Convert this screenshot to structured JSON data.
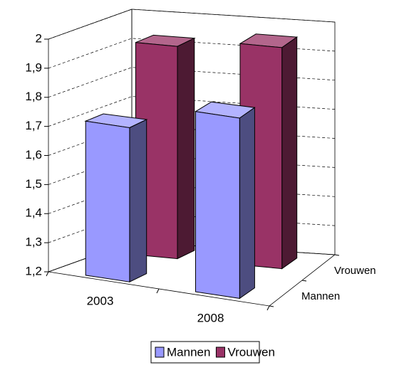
{
  "chart_data": {
    "type": "bar3d",
    "categories": [
      "2003",
      "2008"
    ],
    "series": [
      {
        "name": "Mannen",
        "color": "#9999ff",
        "values": [
          1.73,
          1.82
        ]
      },
      {
        "name": "Vrouwen",
        "color": "#993366",
        "values": [
          1.93,
          1.96
        ]
      }
    ],
    "ylim": [
      1.2,
      2
    ],
    "yticks": [
      {
        "value": 1.2,
        "label": "1,2"
      },
      {
        "value": 1.3,
        "label": "1,3"
      },
      {
        "value": 1.4,
        "label": "1,4"
      },
      {
        "value": 1.5,
        "label": "1,5"
      },
      {
        "value": 1.6,
        "label": "1,6"
      },
      {
        "value": 1.7,
        "label": "1,7"
      },
      {
        "value": 1.8,
        "label": "1,8"
      },
      {
        "value": 1.9,
        "label": "1,9"
      },
      {
        "value": 2,
        "label": "2"
      }
    ],
    "grid": true,
    "legend": "bottom"
  }
}
